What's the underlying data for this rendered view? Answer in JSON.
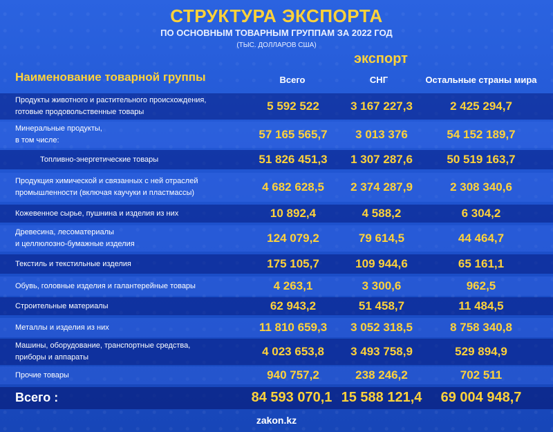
{
  "header": {
    "title": "СТРУКТУРА ЭКСПОРТА",
    "subtitle": "ПО ОСНОВНЫМ ТОВАРНЫМ ГРУППАМ ЗА 2022 ГОД",
    "units": "(ТЫС. ДОЛЛАРОВ США)",
    "export_label": "экспорт"
  },
  "columns": {
    "name": "Наименование товарной группы",
    "total": "Всего",
    "cis": "СНГ",
    "rest": "Остальные страны мира"
  },
  "rows": [
    {
      "line1": "Продукты животного и растительного происхождения,",
      "line2": "готовые продовольственные товары",
      "total": "5 592 522",
      "cis": "3 167 227,3",
      "rest": "2 425 294,7"
    },
    {
      "line1": "Минеральные продукты,",
      "line2": "в том числе:",
      "total": "57 165 565,7",
      "cis": "3 013 376",
      "rest": "54 152 189,7"
    },
    {
      "line1": "Топливно-энергетические товары",
      "line2": "",
      "total": "51 826 451,3",
      "cis": "1 307 287,6",
      "rest": "50 519 163,7"
    },
    {
      "line1": "Продукция химической и связанных с ней отраслей",
      "line2": "промышленности (включая каучуки и пластмассы)",
      "total": "4 682 628,5",
      "cis": "2 374 287,9",
      "rest": "2 308 340,6"
    },
    {
      "line1": "Кожевенное сырье, пушнина и изделия из них",
      "line2": "",
      "total": "10 892,4",
      "cis": "4 588,2",
      "rest": "6 304,2"
    },
    {
      "line1": "Древесина, лесоматериалы",
      "line2": "и целлюлозно-бумажные изделия",
      "total": "124 079,2",
      "cis": "79 614,5",
      "rest": "44 464,7"
    },
    {
      "line1": "Текстиль и текстильные изделия",
      "line2": "",
      "total": "175 105,7",
      "cis": "109 944,6",
      "rest": "65 161,1"
    },
    {
      "line1": "Обувь, головные изделия и галантерейные товары",
      "line2": "",
      "total": "4 263,1",
      "cis": "3 300,6",
      "rest": "962,5"
    },
    {
      "line1": "Строительные материалы",
      "line2": "",
      "total": "62 943,2",
      "cis": "51 458,7",
      "rest": "11 484,5"
    },
    {
      "line1": "Металлы и изделия из них",
      "line2": "",
      "total": "11 810 659,3",
      "cis": "3 052 318,5",
      "rest": "8 758 340,8"
    },
    {
      "line1": "Машины, оборудование, транспортные средства,",
      "line2": "приборы и аппараты",
      "total": "4 023 653,8",
      "cis": "3 493 758,9",
      "rest": "529 894,9"
    },
    {
      "line1": "Прочие товары",
      "line2": "",
      "total": "940 757,2",
      "cis": "238 246,2",
      "rest": "702 511"
    }
  ],
  "totals": {
    "label": "Всего :",
    "total": "84 593 070,1",
    "cis": "15 588 121,4",
    "rest": "69 004 948,7"
  },
  "footer": {
    "source": "zakon.kz"
  }
}
